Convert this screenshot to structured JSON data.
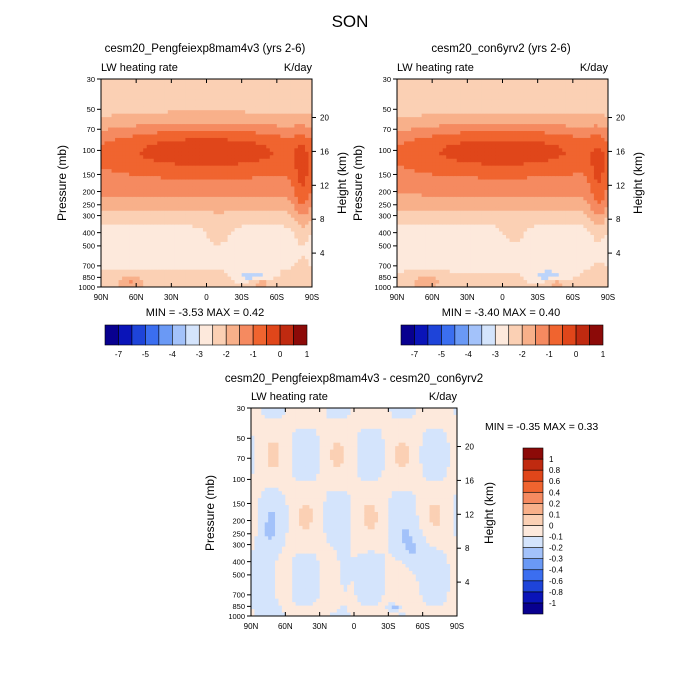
{
  "figure_title": "SON",
  "palette": [
    "#08008f",
    "#0a14b8",
    "#1e44d9",
    "#3b6ef0",
    "#6a99f5",
    "#a3c2fa",
    "#d4e4fc",
    "#fde9dc",
    "#fbd0b4",
    "#f8b08a",
    "#f58a60",
    "#f0642f",
    "#e0461a",
    "#c02a10",
    "#8c0a08"
  ],
  "colorbar_main": {
    "tick_labels": [
      "-7",
      "-5",
      "-4",
      "-3",
      "-2",
      "-1",
      "0",
      "1"
    ]
  },
  "colorbar_diff": {
    "tick_labels": [
      "1",
      "0.8",
      "0.6",
      "0.4",
      "0.2",
      "0.1",
      "0",
      "-0.1",
      "-0.2",
      "-0.3",
      "-0.4",
      "-0.6",
      "-0.8",
      "-1"
    ]
  },
  "chart_data": [
    {
      "type": "heatmap",
      "title": "cesm20_Pengfeiexp8mam4v3 (yrs 2-6)",
      "left_label": "LW heating rate",
      "right_label": "K/day",
      "ylabel": "Pressure (mb)",
      "ylabel_right": "Height (km)",
      "x_ticks": [
        "90N",
        "60N",
        "30N",
        "0",
        "30S",
        "60S",
        "90S"
      ],
      "y_ticks": [
        "30",
        "50",
        "70",
        "100",
        "150",
        "200",
        "250",
        "300",
        "400",
        "500",
        "700",
        "850",
        "1000"
      ],
      "height_ticks": [
        "20",
        "16",
        "12",
        "8",
        "4"
      ],
      "min_label": "MIN =  -3.53  MAX =   0.42",
      "min": -3.53,
      "max": 0.42
    },
    {
      "type": "heatmap",
      "title": "cesm20_con6yrv2 (yrs 2-6)",
      "left_label": "LW heating rate",
      "right_label": "K/day",
      "ylabel": "Pressure (mb)",
      "ylabel_right": "Height (km)",
      "x_ticks": [
        "90N",
        "60N",
        "30N",
        "0",
        "30S",
        "60S",
        "90S"
      ],
      "y_ticks": [
        "30",
        "50",
        "70",
        "100",
        "150",
        "200",
        "250",
        "300",
        "400",
        "500",
        "700",
        "850",
        "1000"
      ],
      "height_ticks": [
        "20",
        "16",
        "12",
        "8",
        "4"
      ],
      "min_label": "MIN =  -3.40  MAX =   0.40",
      "min": -3.4,
      "max": 0.4
    },
    {
      "type": "heatmap",
      "title": "cesm20_Pengfeiexp8mam4v3 - cesm20_con6yrv2",
      "left_label": "LW heating rate",
      "right_label": "K/day",
      "ylabel": "Pressure (mb)",
      "ylabel_right": "Height (km)",
      "x_ticks": [
        "90N",
        "60N",
        "30N",
        "0",
        "30S",
        "60S",
        "90S"
      ],
      "y_ticks": [
        "30",
        "50",
        "70",
        "100",
        "150",
        "200",
        "250",
        "300",
        "400",
        "500",
        "700",
        "850",
        "1000"
      ],
      "height_ticks": [
        "20",
        "16",
        "12",
        "8",
        "4"
      ],
      "min_label": "MIN =  -0.35  MAX =    0.33",
      "min": -0.35,
      "max": 0.33
    }
  ]
}
